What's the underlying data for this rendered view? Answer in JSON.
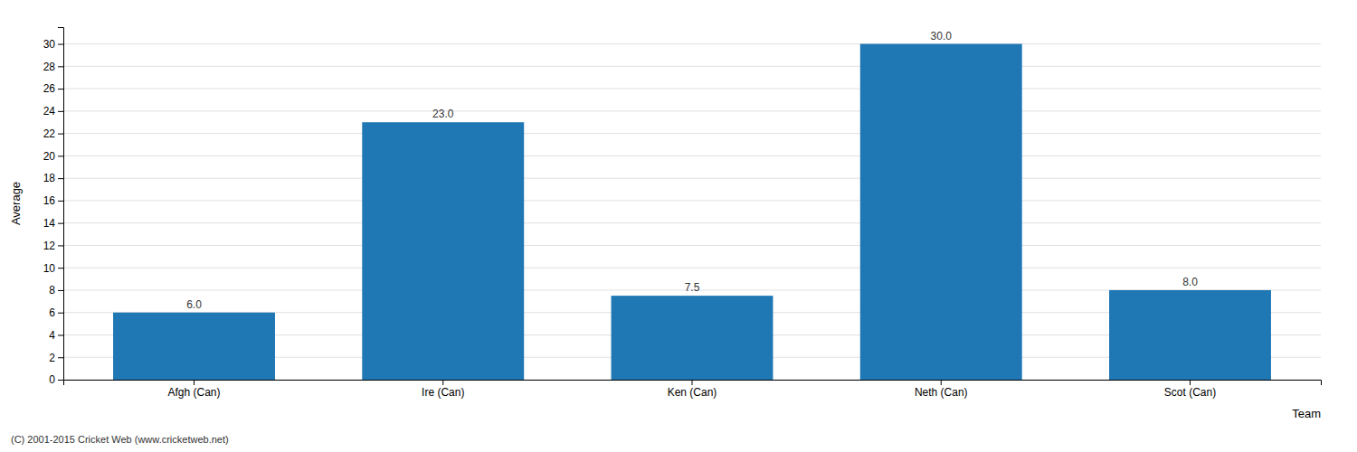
{
  "chart_data": {
    "type": "bar",
    "categories": [
      "Afgh (Can)",
      "Ire (Can)",
      "Ken (Can)",
      "Neth (Can)",
      "Scot (Can)"
    ],
    "values": [
      6.0,
      23.0,
      7.5,
      30.0,
      8.0
    ],
    "value_labels": [
      "6.0",
      "23.0",
      "7.5",
      "30.0",
      "8.0"
    ],
    "data_labels": true,
    "xlabel": "Team",
    "ylabel": "Average",
    "ylim": [
      0,
      31.5
    ],
    "yticks": [
      0,
      2,
      4,
      6,
      8,
      10,
      12,
      14,
      16,
      18,
      20,
      22,
      24,
      26,
      28,
      30
    ],
    "grid": true,
    "annotations": [
      "(C) 2001-2015 Cricket Web (www.cricketweb.net)"
    ]
  }
}
